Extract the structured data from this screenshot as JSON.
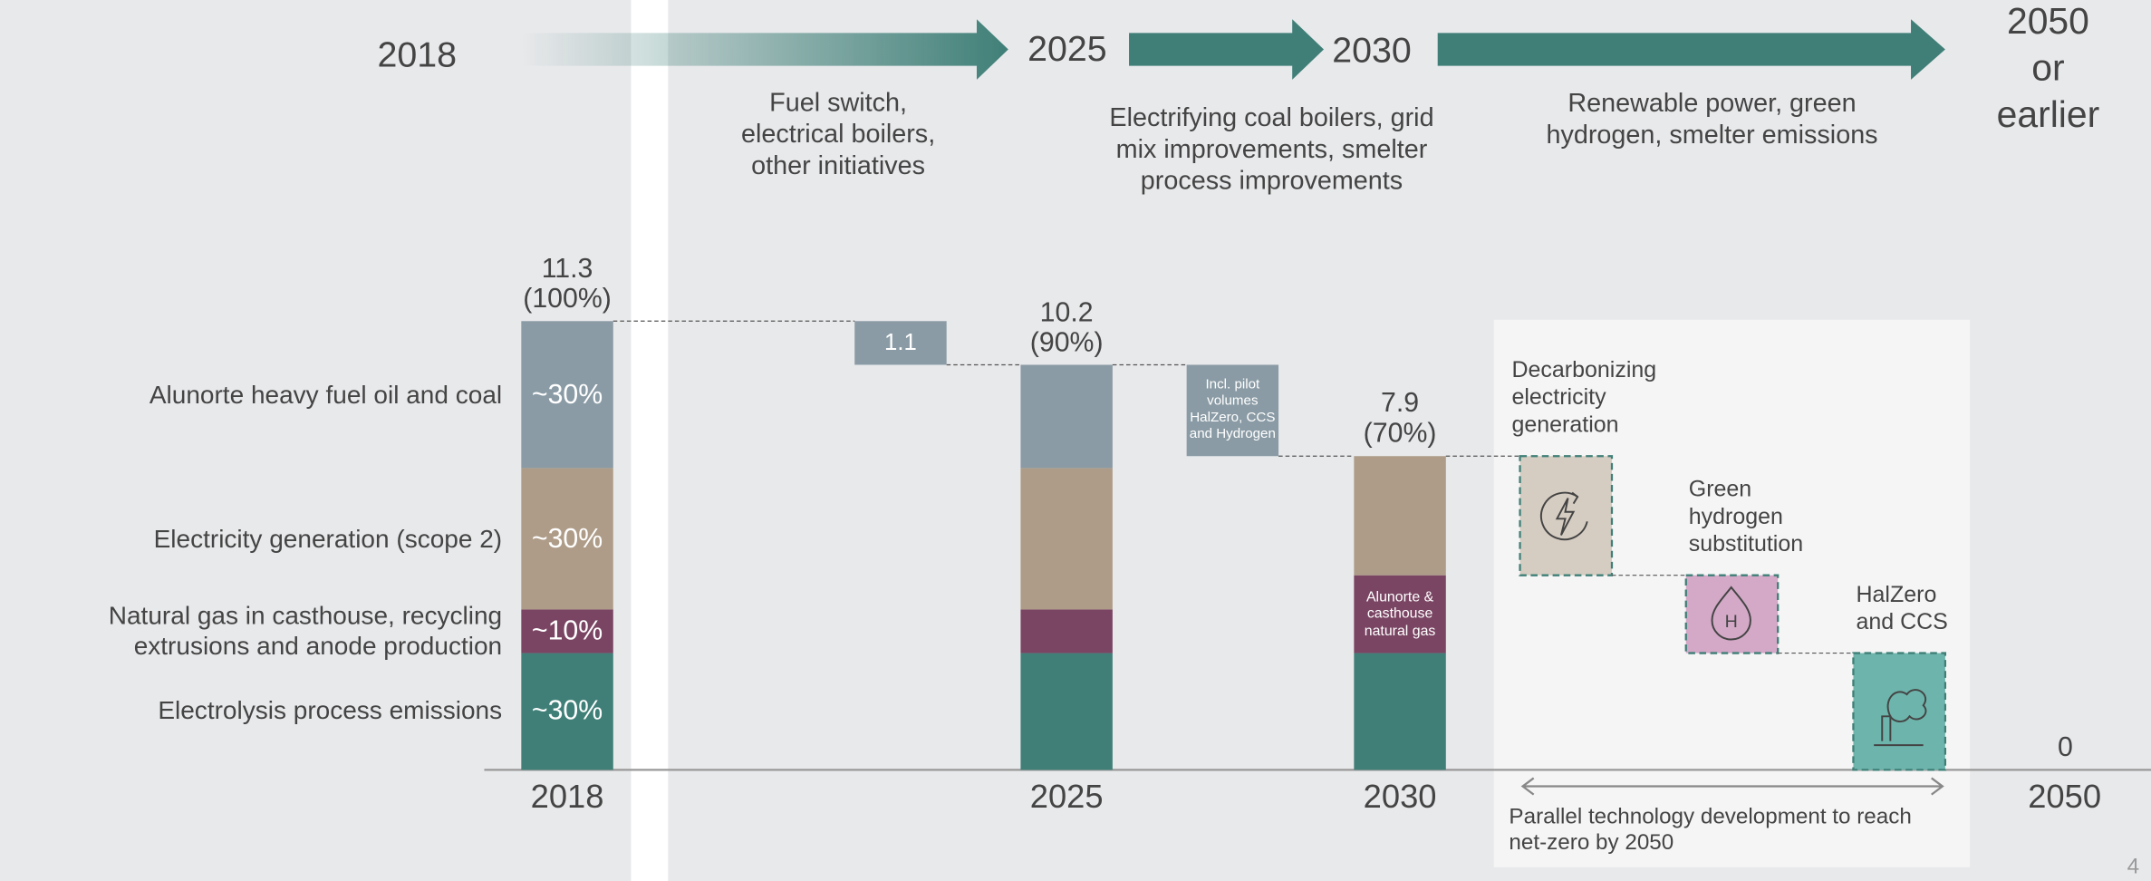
{
  "timeline": {
    "milestones": [
      "2018",
      "2025",
      "2030",
      "2050\nor earlier"
    ],
    "phases": [
      "Fuel switch,\nelectrical boilers,\nother initiatives",
      "Electrifying coal boilers, grid\nmix improvements, smelter\nprocess improvements",
      "Renewable power, green\nhydrogen, smelter emissions"
    ]
  },
  "chart_data": {
    "type": "waterfall",
    "categories": [
      "2018",
      "2025",
      "2030",
      "2050"
    ],
    "totals": [
      11.3,
      10.2,
      7.9,
      0
    ],
    "total_shares": [
      "(100%)",
      "(90%)",
      "(70%)",
      null
    ],
    "ylim": [
      0,
      11.3
    ],
    "series": [
      {
        "name": "Alunorte heavy fuel oil and coal",
        "color": "#8a9ba5",
        "values": [
          3.7,
          2.6,
          0,
          0
        ],
        "labels": [
          "~30%",
          null,
          null,
          null
        ]
      },
      {
        "name": "Electricity generation (scope 2)",
        "color": "#ae9c88",
        "values": [
          3.56,
          3.56,
          3.0,
          0
        ],
        "labels": [
          "~30%",
          null,
          null,
          null
        ]
      },
      {
        "name": "Natural gas in casthouse, recycling\nextrusions and anode production",
        "color": "#7a4563",
        "values": [
          1.1,
          1.1,
          1.96,
          0
        ],
        "labels": [
          "~10%",
          null,
          "Alunorte &\ncasthouse\nnatural gas",
          null
        ]
      },
      {
        "name": "Electrolysis process emissions",
        "color": "#3f7f77",
        "values": [
          2.94,
          2.94,
          2.94,
          0
        ],
        "labels": [
          "~30%",
          null,
          null,
          null
        ]
      }
    ],
    "steps": [
      {
        "value": 1.1,
        "color": "#8a9ba5"
      },
      {
        "label": "Incl. pilot\nvolumes\nHalZero, CCS\nand Hydrogen",
        "value": 2.3,
        "color": "#8a9ba5"
      }
    ],
    "reductions": [
      {
        "label": "Decarbonizing\nelectricity\ngeneration",
        "value": 3.0,
        "color": "#d6cdc2"
      },
      {
        "label": "Green\nhydrogen\nsubstitution",
        "value": 1.96,
        "color": "#d3a9c7"
      },
      {
        "label": "HalZero\nand CCS",
        "value": 2.94,
        "color": "#6db5ac"
      }
    ],
    "note": "Parallel technology development to reach\nnet-zero by 2050"
  },
  "page_number": "4"
}
